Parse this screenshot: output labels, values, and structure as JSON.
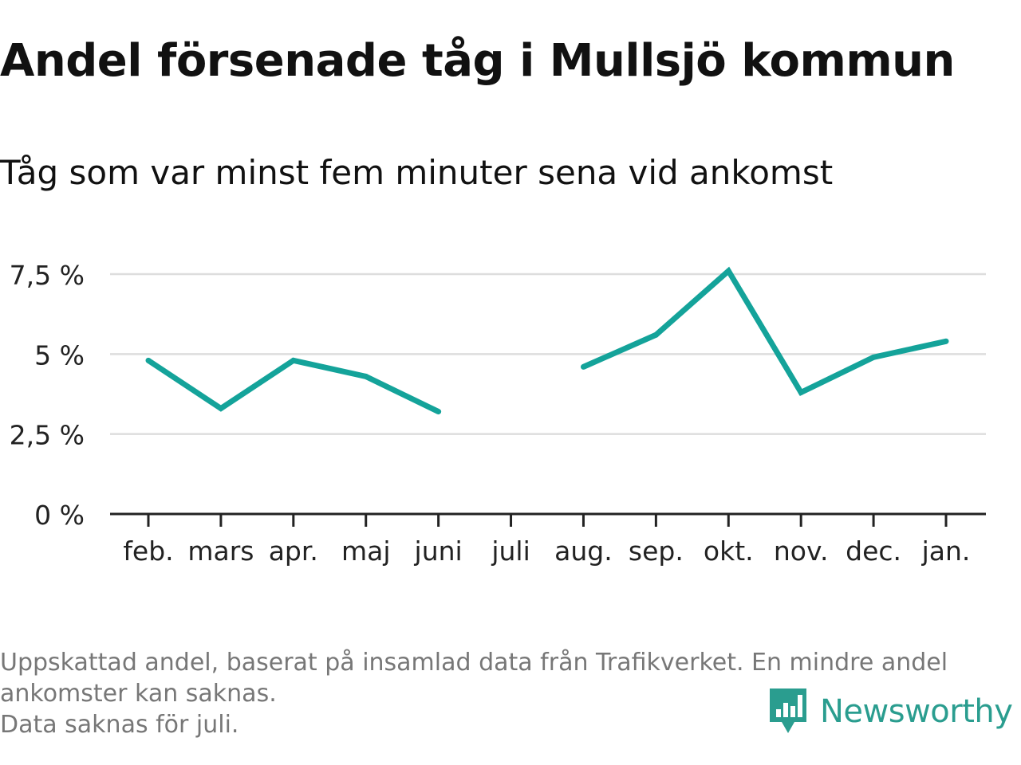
{
  "title": "Andel försenade tåg i Mullsjö kommun",
  "subtitle": "Tåg som var minst fem minuter sena vid ankomst",
  "footnotes": [
    "Uppskattad andel, baserat på insamlad data från Trafikverket. En mindre andel",
    "ankomster kan saknas.",
    "Data saknas för juli."
  ],
  "brand": {
    "name": "Newsworthy",
    "icon": "newsworthy-logo-icon",
    "color": "#2a9d8f"
  },
  "chart_data": {
    "type": "line",
    "title": "Andel försenade tåg i Mullsjö kommun",
    "subtitle": "Tåg som var minst fem minuter sena vid ankomst",
    "categories": [
      "feb.",
      "mars",
      "apr.",
      "maj",
      "juni",
      "juli",
      "aug.",
      "sep.",
      "okt.",
      "nov.",
      "dec.",
      "jan."
    ],
    "series": [
      {
        "values": [
          4.8,
          3.3,
          4.8,
          4.3,
          3.2,
          null,
          4.6,
          5.6,
          7.6,
          3.8,
          4.9,
          5.4
        ],
        "color": "#14a39a"
      }
    ],
    "yticks": [
      {
        "value": 0,
        "label": "0 %"
      },
      {
        "value": 2.5,
        "label": "2,5 %"
      },
      {
        "value": 5,
        "label": "5 %"
      },
      {
        "value": 7.5,
        "label": "7,5 %"
      }
    ],
    "ylim": [
      0,
      7.5
    ],
    "grid": true,
    "legend": "none"
  }
}
